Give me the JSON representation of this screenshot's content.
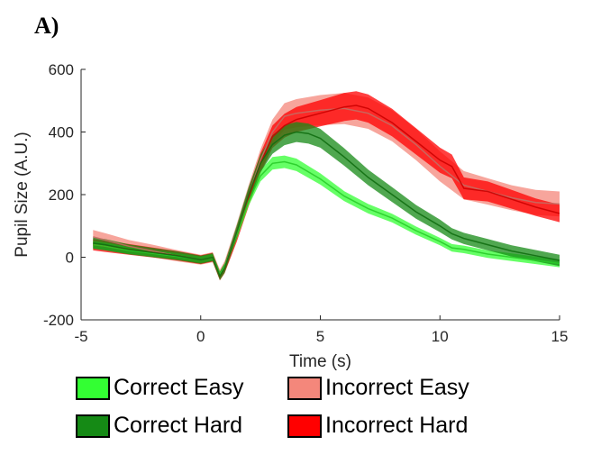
{
  "panel_label": "A)",
  "chart_data": {
    "type": "line",
    "xlabel": "Time (s)",
    "ylabel": "Pupil Size (A.U.)",
    "xlim": [
      -5,
      15
    ],
    "ylim": [
      -200,
      600
    ],
    "xticks": [
      -5,
      0,
      5,
      10,
      15
    ],
    "yticks": [
      -200,
      0,
      200,
      400,
      600
    ],
    "grid": false,
    "legend_position": "bottom",
    "series": [
      {
        "name": "Incorrect Easy",
        "color": "#f4877b",
        "x": [
          -4.5,
          -4,
          -3,
          -2,
          -1,
          0,
          0.5,
          0.8,
          1,
          1.5,
          2,
          2.5,
          3,
          3.5,
          4,
          5,
          6,
          7,
          8,
          9,
          10,
          11,
          12,
          13,
          14,
          15
        ],
        "y": [
          65,
          55,
          35,
          20,
          5,
          -8,
          0,
          -55,
          -30,
          80,
          200,
          310,
          400,
          450,
          460,
          470,
          475,
          460,
          420,
          360,
          290,
          230,
          210,
          190,
          175,
          170
        ],
        "err": [
          22,
          22,
          20,
          20,
          18,
          16,
          16,
          16,
          18,
          25,
          30,
          35,
          40,
          42,
          45,
          48,
          50,
          50,
          50,
          50,
          48,
          45,
          42,
          40,
          40,
          40
        ]
      },
      {
        "name": "Incorrect Hard",
        "color": "#ff0000",
        "x": [
          -4.5,
          -4,
          -3,
          -2,
          -1,
          0,
          0.5,
          0.8,
          1,
          1.5,
          2,
          2.5,
          3,
          3.5,
          4,
          5,
          6,
          6.5,
          7,
          8,
          9,
          10,
          10.5,
          11,
          12,
          13,
          14,
          15
        ],
        "y": [
          40,
          35,
          25,
          15,
          5,
          -8,
          0,
          -60,
          -35,
          70,
          190,
          300,
          385,
          420,
          440,
          460,
          480,
          485,
          475,
          430,
          370,
          310,
          290,
          220,
          210,
          185,
          160,
          140
        ],
        "err": [
          18,
          18,
          17,
          16,
          15,
          14,
          14,
          14,
          16,
          22,
          28,
          32,
          36,
          38,
          40,
          42,
          45,
          45,
          45,
          44,
          42,
          40,
          38,
          35,
          32,
          30,
          28,
          28
        ]
      },
      {
        "name": "Correct Easy",
        "color": "#33ff33",
        "x": [
          -4.5,
          -4,
          -3,
          -2,
          -1,
          0,
          0.5,
          0.8,
          1,
          1.5,
          2,
          2.5,
          3,
          3.5,
          4,
          5,
          6,
          7,
          8,
          9,
          10,
          10.5,
          11,
          12,
          13,
          14,
          15
        ],
        "y": [
          40,
          35,
          22,
          12,
          3,
          -8,
          0,
          -55,
          -30,
          70,
          180,
          260,
          300,
          305,
          295,
          250,
          195,
          155,
          125,
          85,
          50,
          30,
          25,
          10,
          0,
          -10,
          -20
        ],
        "err": [
          12,
          12,
          11,
          10,
          10,
          10,
          10,
          10,
          11,
          14,
          16,
          18,
          20,
          20,
          20,
          18,
          16,
          15,
          14,
          13,
          12,
          12,
          12,
          12,
          12,
          12,
          12
        ]
      },
      {
        "name": "Correct Hard",
        "color": "#158a15",
        "x": [
          -4.5,
          -4,
          -3,
          -2,
          -1,
          0,
          0.5,
          0.8,
          1,
          1.5,
          2,
          2.5,
          3,
          3.5,
          4,
          4.5,
          5,
          6,
          7,
          8,
          9,
          10,
          10.5,
          11,
          12,
          13,
          14,
          15
        ],
        "y": [
          45,
          40,
          25,
          15,
          5,
          -8,
          0,
          -60,
          -35,
          80,
          200,
          300,
          360,
          390,
          400,
          395,
          380,
          320,
          255,
          200,
          145,
          100,
          75,
          60,
          40,
          20,
          5,
          -10
        ],
        "err": [
          18,
          18,
          16,
          15,
          14,
          13,
          13,
          13,
          15,
          20,
          24,
          28,
          30,
          32,
          32,
          32,
          30,
          28,
          25,
          24,
          22,
          20,
          18,
          18,
          18,
          18,
          18,
          18
        ]
      }
    ]
  },
  "legend": {
    "items": [
      {
        "label": "Correct Easy",
        "color": "#33ff33"
      },
      {
        "label": "Incorrect Easy",
        "color": "#f4877b"
      },
      {
        "label": "Correct Hard",
        "color": "#158a15"
      },
      {
        "label": "Incorrect Hard",
        "color": "#ff0000"
      }
    ]
  }
}
